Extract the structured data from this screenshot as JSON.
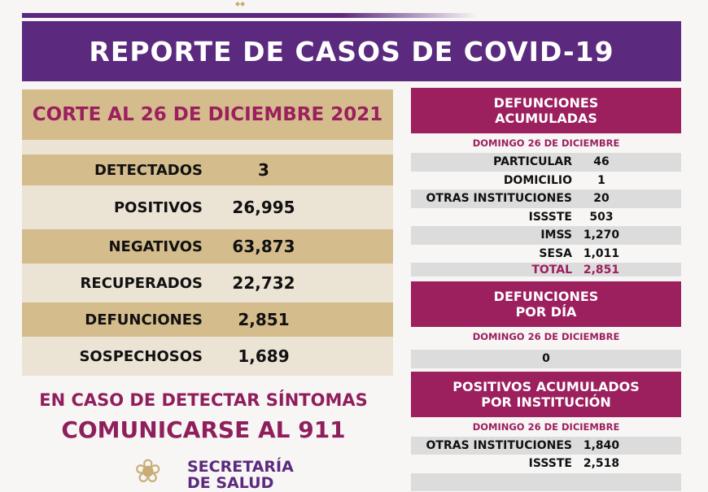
{
  "title": "REPORTE DE CASOS DE COVID-19",
  "colors": {
    "purple": "#5b2a7e",
    "magenta": "#9c1f5e",
    "tan": "#d4bc8c"
  },
  "left": {
    "header": "CORTE AL 26 DE DICIEMBRE 2021",
    "rows": [
      {
        "label": "DETECTADOS",
        "value": "3"
      },
      {
        "label": "POSITIVOS",
        "value": "26,995"
      },
      {
        "label": "NEGATIVOS",
        "value": "63,873"
      },
      {
        "label": "RECUPERADOS",
        "value": "22,732"
      },
      {
        "label": "DEFUNCIONES",
        "value": "2,851"
      },
      {
        "label": "SOSPECHOSOS",
        "value": "1,689"
      }
    ]
  },
  "cta": {
    "line1": "EN CASO DE DETECTAR SÍNTOMAS",
    "line2": "COMUNICARSE AL 911"
  },
  "logo": {
    "line1": "SECRETARÍA",
    "line2": "DE SALUD",
    "icon": "lotus-flower-icon"
  },
  "defunciones_acumuladas": {
    "title1": "DEFUNCIONES",
    "title2": "ACUMULADAS",
    "date": "DOMINGO 26 DE DICIEMBRE",
    "rows": [
      {
        "label": "PARTICULAR",
        "value": "46"
      },
      {
        "label": "DOMICILIO",
        "value": "1"
      },
      {
        "label": "OTRAS INSTITUCIONES",
        "value": "20"
      },
      {
        "label": "ISSSTE",
        "value": "503"
      },
      {
        "label": "IMSS",
        "value": "1,270"
      },
      {
        "label": "SESA",
        "value": "1,011"
      }
    ],
    "total_label": "TOTAL",
    "total_value": "2,851"
  },
  "defunciones_dia": {
    "title1": "DEFUNCIONES",
    "title2": "POR DÍA",
    "date": "DOMINGO 26 DE DICIEMBRE",
    "value": "0"
  },
  "positivos_institucion": {
    "title1": "POSITIVOS ACUMULADOS",
    "title2": "POR INSTITUCIÓN",
    "date": "DOMINGO 26 DE DICIEMBRE",
    "rows": [
      {
        "label": "OTRAS INSTITUCIONES",
        "value": "1,840"
      },
      {
        "label": "ISSSTE",
        "value": "2,518"
      }
    ]
  }
}
